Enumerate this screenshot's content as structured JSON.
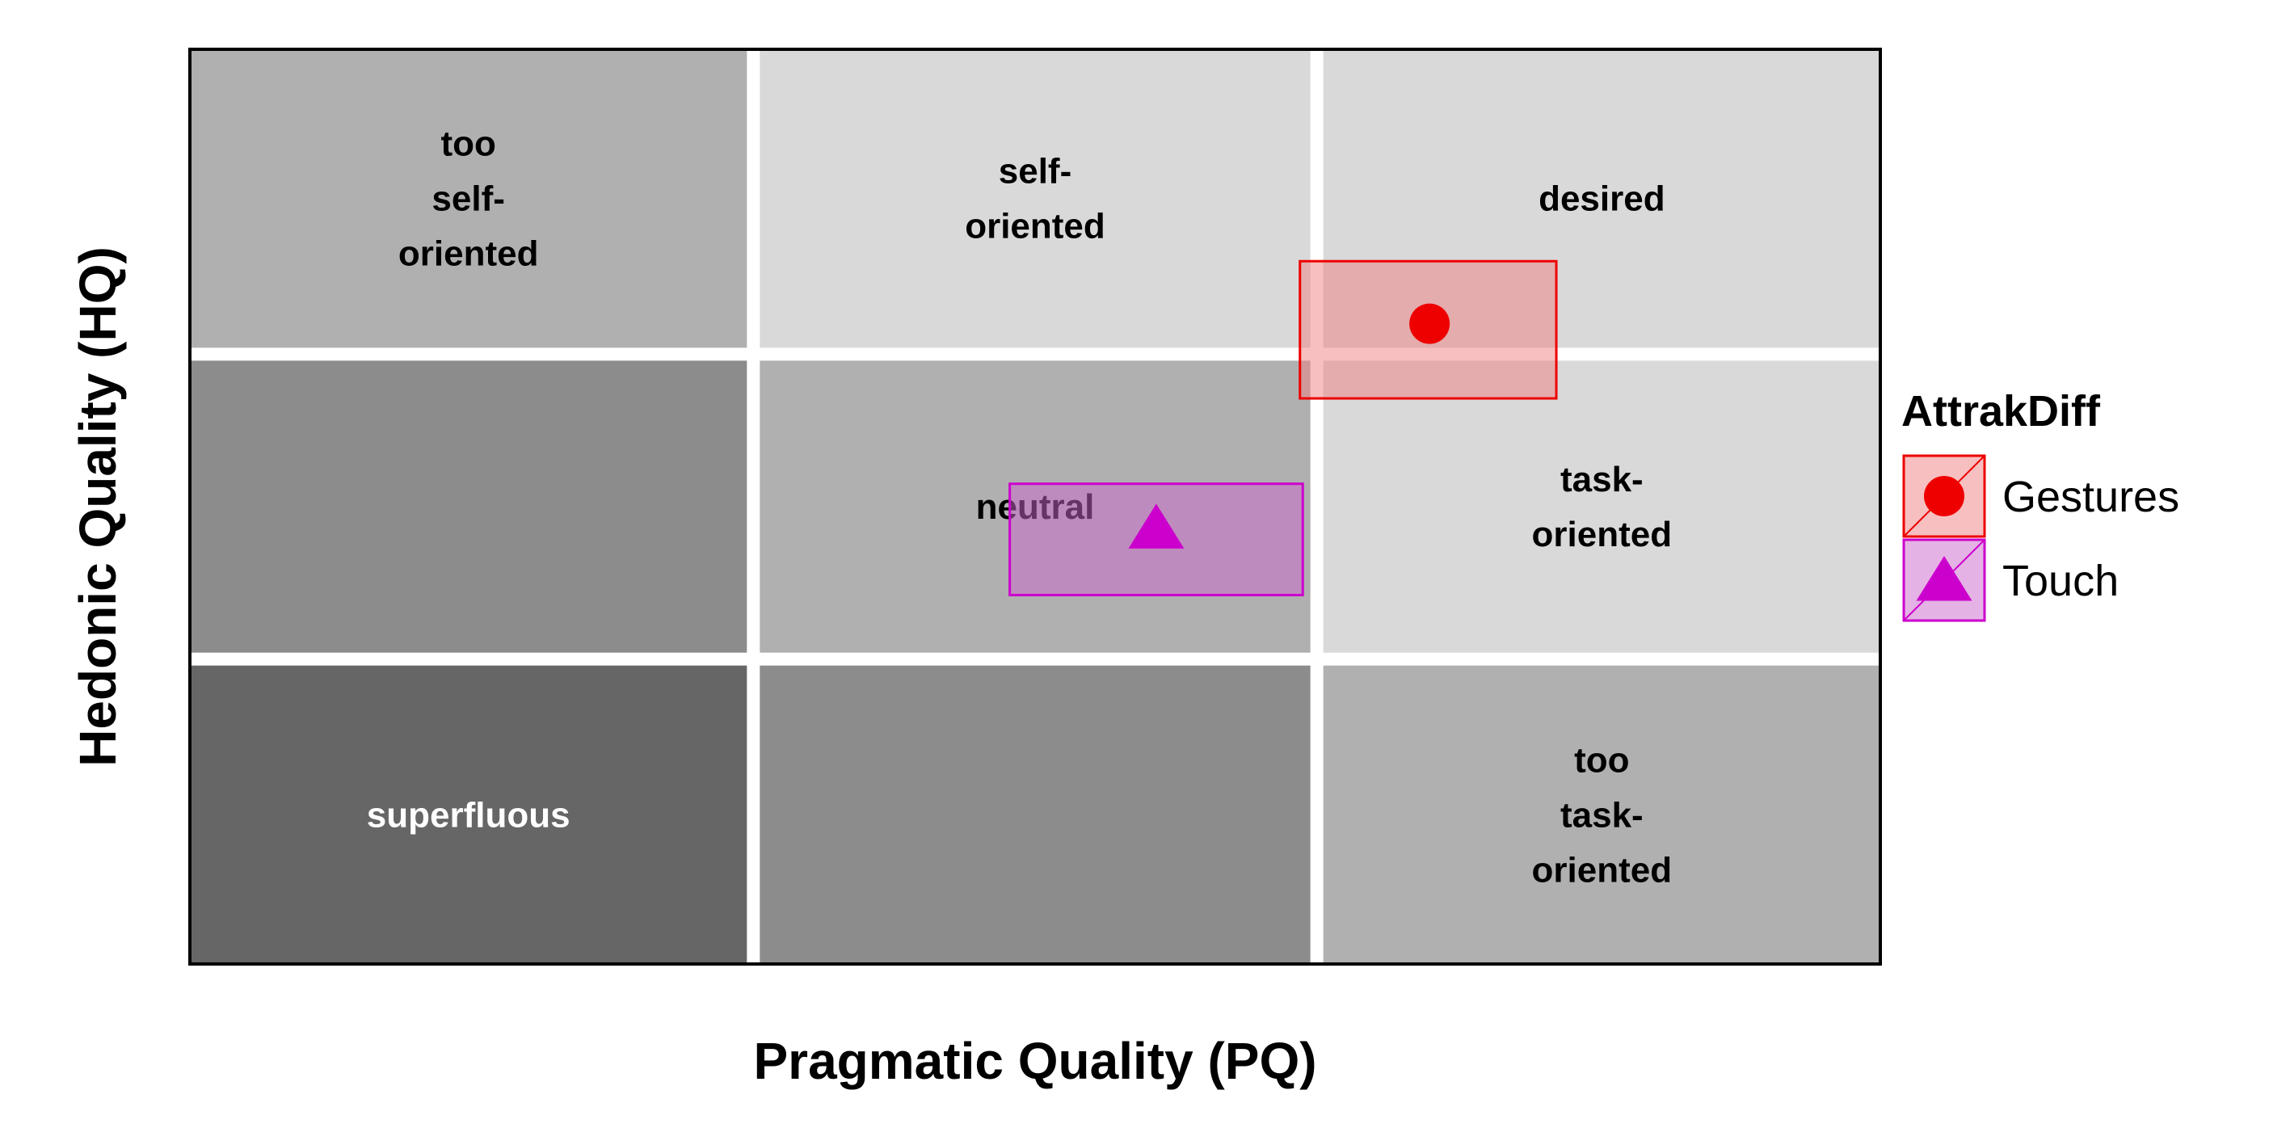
{
  "chart_data": {
    "type": "scatter",
    "title": "",
    "xlabel": "Pragmatic Quality (PQ)",
    "ylabel": "Hedonic Quality (HQ)",
    "xlim": [
      -3,
      3
    ],
    "ylim": [
      -3,
      3
    ],
    "grid": false,
    "regions": [
      {
        "row": 0,
        "col": 0,
        "lines": [
          "too",
          "self-",
          "oriented"
        ],
        "fill": "#b0b0b0",
        "text_color": "#000000"
      },
      {
        "row": 0,
        "col": 1,
        "lines": [
          "self-",
          "oriented"
        ],
        "fill": "#d9d9d9",
        "text_color": "#000000"
      },
      {
        "row": 0,
        "col": 2,
        "lines": [
          "desired"
        ],
        "fill": "#d9d9d9",
        "text_color": "#000000"
      },
      {
        "row": 1,
        "col": 0,
        "lines": [],
        "fill": "#8c8c8c",
        "text_color": "#000000"
      },
      {
        "row": 1,
        "col": 1,
        "lines": [
          "neutral"
        ],
        "fill": "#b0b0b0",
        "text_color": "#000000"
      },
      {
        "row": 1,
        "col": 2,
        "lines": [
          "task-",
          "oriented"
        ],
        "fill": "#d9d9d9",
        "text_color": "#000000"
      },
      {
        "row": 2,
        "col": 0,
        "lines": [
          "superfluous"
        ],
        "fill": "#666666",
        "text_color": "#ffffff"
      },
      {
        "row": 2,
        "col": 1,
        "lines": [],
        "fill": "#8c8c8c",
        "text_color": "#000000"
      },
      {
        "row": 2,
        "col": 2,
        "lines": [
          "too",
          "task-",
          "oriented"
        ],
        "fill": "#b0b0b0",
        "text_color": "#000000"
      }
    ],
    "series": [
      {
        "name": "Gestures",
        "shape": "circle",
        "color": "#ee0000",
        "fill": "#f08080",
        "x": 1.4,
        "y": 1.2,
        "x_ci": [
          0.94,
          1.85
        ],
        "y_ci": [
          0.71,
          1.61
        ]
      },
      {
        "name": "Touch",
        "shape": "triangle",
        "color": "#cc00cc",
        "fill": "#cc66cc",
        "x": 0.43,
        "y": -0.14,
        "x_ci": [
          -0.09,
          0.95
        ],
        "y_ci": [
          -0.58,
          0.15
        ]
      }
    ],
    "legend": {
      "title": "AttrakDiff",
      "position": "right"
    }
  }
}
